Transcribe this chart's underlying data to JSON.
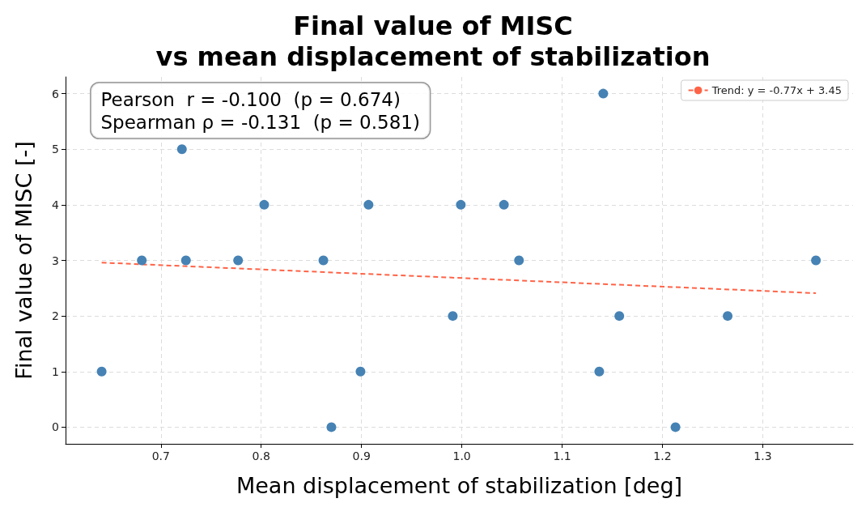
{
  "chart_data": {
    "type": "scatter",
    "title": "Final value of MISC\nvs mean displacement of stabilization",
    "xlabel": "Mean displacement of stabilization [deg]",
    "ylabel": "Final value of MISC [-]",
    "annotations": [
      "Pearson  r = -0.100  (p = 0.674)",
      "Spearman ρ = -0.131  (p = 0.581)"
    ],
    "x": [
      0.641,
      0.681,
      0.721,
      0.725,
      0.777,
      0.803,
      0.862,
      0.87,
      0.899,
      0.907,
      0.991,
      0.999,
      1.042,
      1.057,
      1.137,
      1.141,
      1.157,
      1.213,
      1.265,
      1.353
    ],
    "series": [
      {
        "color": "#4682b4",
        "values": [
          1,
          3,
          5,
          3,
          3,
          4,
          3,
          0,
          1,
          4,
          2,
          4,
          4,
          3,
          1,
          6,
          2,
          0,
          2,
          3
        ]
      },
      {
        "type": "line",
        "name": "Trend: y = -0.77x + 3.45",
        "color": "#ff6347",
        "line_style": "dashed",
        "marker": "none",
        "x": [
          0.641,
          1.353
        ],
        "values": [
          2.96,
          2.41
        ]
      }
    ],
    "xlim": [
      0.605,
      1.39
    ],
    "ylim": [
      -0.3,
      6.3
    ],
    "xticks": [
      0.7,
      0.8,
      0.9,
      {
        "value": 1,
        "label": "1.0"
      },
      1.1,
      1.2,
      1.3
    ],
    "yticks": [
      0,
      1,
      2,
      3,
      4,
      5,
      6
    ],
    "grid": true,
    "legend": "top right",
    "marker": "circle"
  }
}
